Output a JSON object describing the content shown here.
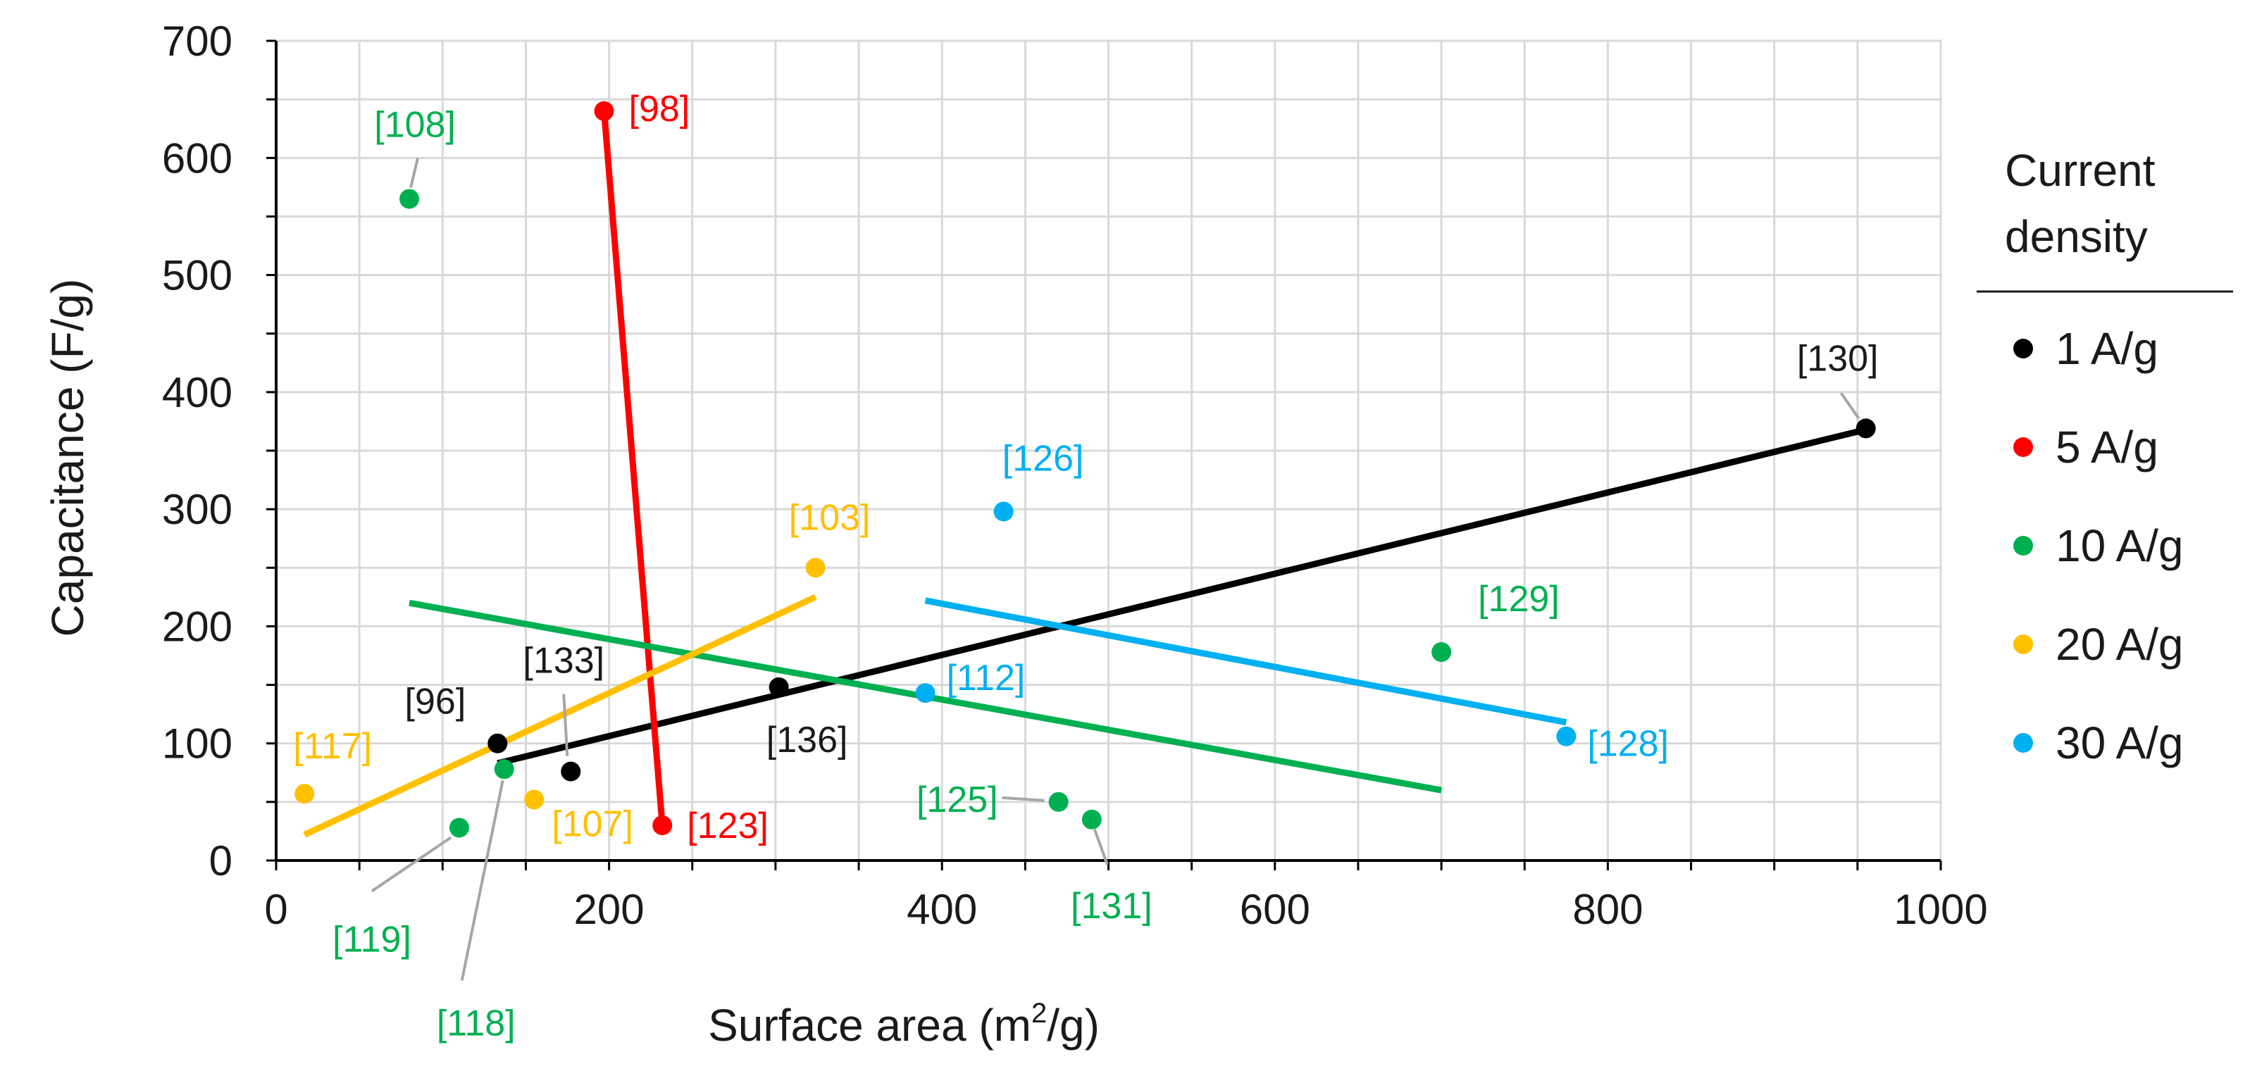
{
  "chart_data": {
    "type": "scatter",
    "xlabel": "Surface area (m",
    "xlabel_sup": "2",
    "xlabel_end": "/g)",
    "ylabel": "Capacitance (F/g)",
    "xlim": [
      0,
      1000
    ],
    "ylim": [
      0,
      700
    ],
    "xticks": [
      0,
      200,
      400,
      600,
      800,
      1000
    ],
    "yticks": [
      0,
      100,
      200,
      300,
      400,
      500,
      600,
      700
    ],
    "grid": true,
    "legend": {
      "title_line1": "Current",
      "title_line2": "density",
      "position": "right"
    },
    "series": [
      {
        "name": "1 A/g",
        "color": "#000000",
        "points": [
          {
            "x": 133,
            "y": 100,
            "ref": "[96]"
          },
          {
            "x": 177,
            "y": 76,
            "ref": "[133]"
          },
          {
            "x": 302,
            "y": 148,
            "ref": "[136]"
          },
          {
            "x": 955,
            "y": 369,
            "ref": "[130]"
          }
        ],
        "trend": [
          [
            133,
            83
          ],
          [
            955,
            368
          ]
        ]
      },
      {
        "name": "5 A/g",
        "color": "#ff0000",
        "points": [
          {
            "x": 197,
            "y": 640,
            "ref": "[98]"
          },
          {
            "x": 232,
            "y": 30,
            "ref": "[123]"
          }
        ],
        "trend": [
          [
            197,
            640
          ],
          [
            232,
            30
          ]
        ]
      },
      {
        "name": "10 A/g",
        "color": "#00b050",
        "points": [
          {
            "x": 80,
            "y": 565,
            "ref": "[108]"
          },
          {
            "x": 110,
            "y": 28,
            "ref": "[119]"
          },
          {
            "x": 137,
            "y": 78,
            "ref": "[118]"
          },
          {
            "x": 470,
            "y": 50,
            "ref": "[125]"
          },
          {
            "x": 490,
            "y": 35,
            "ref": "[131]"
          },
          {
            "x": 700,
            "y": 178,
            "ref": "[129]"
          }
        ],
        "trend": [
          [
            80,
            220
          ],
          [
            700,
            60
          ]
        ]
      },
      {
        "name": "20 A/g",
        "color": "#ffc000",
        "points": [
          {
            "x": 17,
            "y": 57,
            "ref": "[117]"
          },
          {
            "x": 155,
            "y": 52,
            "ref": "[107]"
          },
          {
            "x": 324,
            "y": 250,
            "ref": "[103]"
          }
        ],
        "trend": [
          [
            17,
            22
          ],
          [
            324,
            225
          ]
        ]
      },
      {
        "name": "30 A/g",
        "color": "#00b0f0",
        "points": [
          {
            "x": 390,
            "y": 143,
            "ref": "[112]"
          },
          {
            "x": 437,
            "y": 298,
            "ref": "[126]"
          },
          {
            "x": 775,
            "y": 106,
            "ref": "[128]"
          }
        ],
        "trend": [
          [
            390,
            222
          ],
          [
            775,
            118
          ]
        ]
      }
    ]
  }
}
